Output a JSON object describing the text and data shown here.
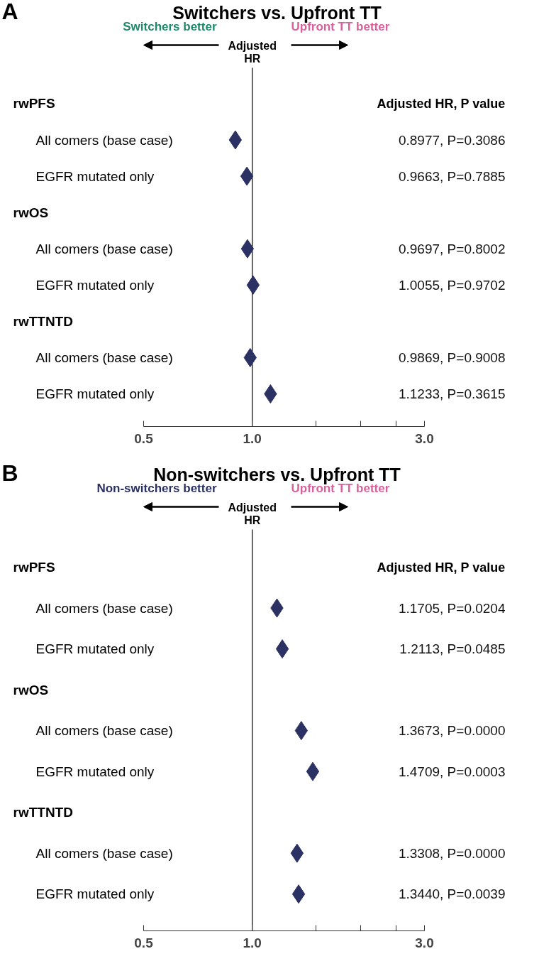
{
  "chart_data": [
    {
      "type": "scatter",
      "orientation": "horizontal",
      "title": "Switchers vs. Upfront TT",
      "categories": [
        "rwPFS",
        "All comers (base case)",
        "EGFR mutated only",
        "rwOS",
        "All comers (base case)",
        "EGFR mutated only",
        "rwTTNTD",
        "All comers (base case)",
        "EGFR mutated only"
      ],
      "series": [
        {
          "color": "#2b3163",
          "values": [
            null,
            0.8977,
            0.9663,
            null,
            0.9697,
            1.0055,
            null,
            0.9869,
            1.1233
          ],
          "value_labels": [
            null,
            "0.8977, P=0.3086",
            "0.9663, P=0.7885",
            null,
            "0.9697, P=0.8002",
            "1.0055, P=0.9702",
            null,
            "0.9869, P=0.9008",
            "1.1233, P=0.3615"
          ]
        }
      ],
      "log": "x",
      "xlim": [
        0.5,
        3.0
      ],
      "xticks": [
        0.5,
        {
          "value": 1,
          "label": "1.0"
        },
        {
          "value": 1.5,
          "label": null
        },
        {
          "value": 2,
          "label": null
        },
        {
          "value": 2.5,
          "label": null
        },
        {
          "value": 3,
          "label": "3.0"
        }
      ],
      "marker": "diamond",
      "grid": false,
      "tick_labels": "x",
      "ref_lines": [
        {
          "axis": "x",
          "value": 1,
          "label": "Adjusted\nHR",
          "color": "#000000"
        }
      ],
      "annotations": [
        "A",
        "Switchers better",
        "Upfront TT better",
        "Adjusted HR, P value"
      ]
    },
    {
      "type": "scatter",
      "orientation": "horizontal",
      "title": "Non-switchers vs. Upfront TT",
      "categories": [
        "rwPFS",
        "All comers (base case)",
        "EGFR mutated only",
        "rwOS",
        "All comers (base case)",
        "EGFR mutated only",
        "rwTTNTD",
        "All comers (base case)",
        "EGFR mutated only"
      ],
      "series": [
        {
          "color": "#2b3163",
          "values": [
            null,
            1.1705,
            1.2113,
            null,
            1.3673,
            1.4709,
            null,
            1.3308,
            1.344
          ],
          "value_labels": [
            null,
            "1.1705, P=0.0204",
            "1.2113, P=0.0485",
            null,
            "1.3673, P=0.0000",
            "1.4709, P=0.0003",
            null,
            "1.3308, P=0.0000",
            "1.3440, P=0.0039"
          ]
        }
      ],
      "log": "x",
      "xlim": [
        0.5,
        3.0
      ],
      "xticks": [
        0.5,
        {
          "value": 1,
          "label": "1.0"
        },
        {
          "value": 1.5,
          "label": null
        },
        {
          "value": 2,
          "label": null
        },
        {
          "value": 2.5,
          "label": null
        },
        {
          "value": 3,
          "label": "3.0"
        }
      ],
      "marker": "diamond",
      "grid": false,
      "tick_labels": "x",
      "ref_lines": [
        {
          "axis": "x",
          "value": 1,
          "label": "Adjusted\nHR",
          "color": "#000000"
        }
      ],
      "annotations": [
        "B",
        "Non-switchers better",
        "Upfront TT better",
        "Adjusted HR, P value"
      ]
    }
  ]
}
